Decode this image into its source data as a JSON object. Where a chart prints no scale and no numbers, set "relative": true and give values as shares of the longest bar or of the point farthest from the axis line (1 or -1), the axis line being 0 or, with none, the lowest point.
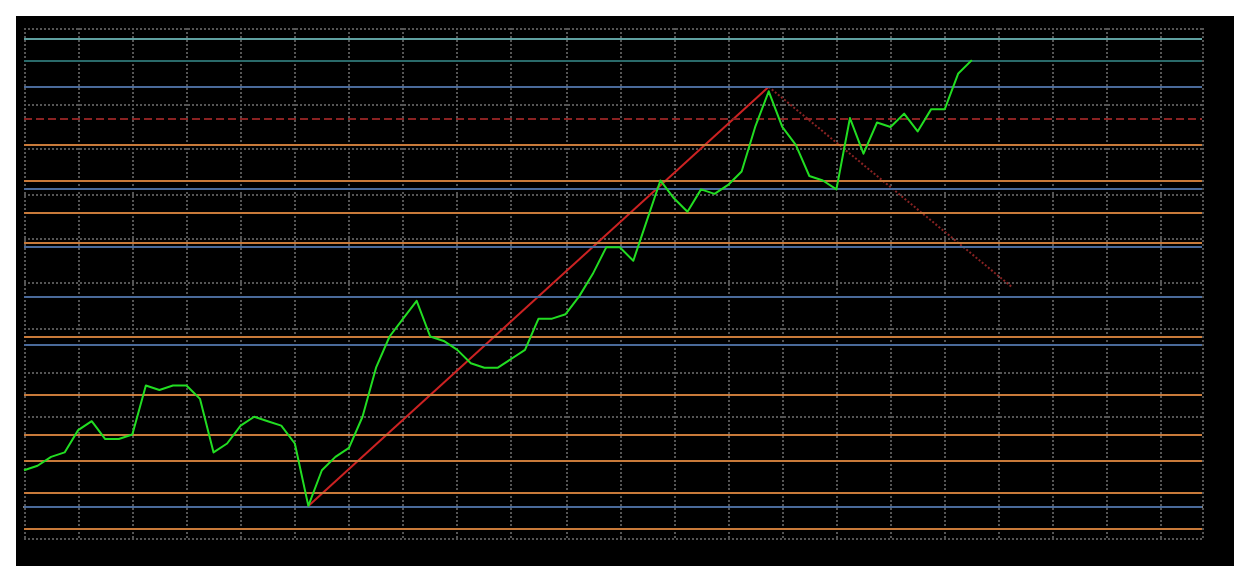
{
  "chart_data": {
    "type": "line",
    "relative": true,
    "grid": true,
    "marker": "none",
    "categories": [
      null,
      null,
      null,
      null,
      null,
      null,
      null,
      null,
      null,
      null,
      null,
      null,
      null,
      null,
      null,
      null,
      null,
      null,
      null,
      null,
      null,
      null,
      null,
      null,
      null,
      null,
      null,
      null,
      null,
      null,
      null,
      null,
      null,
      null,
      null,
      null,
      null,
      null,
      null,
      null,
      null,
      null,
      null,
      null,
      null,
      null,
      null,
      null,
      null,
      null,
      null,
      null,
      null,
      null,
      null,
      null,
      null,
      null,
      null,
      null,
      null,
      null,
      null,
      null,
      null,
      null,
      null,
      null,
      null,
      null,
      null,
      null,
      null,
      null,
      null,
      null,
      null,
      null,
      null,
      null,
      null,
      null,
      null,
      null,
      null,
      null,
      null,
      null
    ],
    "series": [
      {
        "color": "#22dd22",
        "values": [
          0.08,
          0.09,
          0.11,
          0.12,
          0.17,
          0.19,
          0.15,
          0.15,
          0.16,
          0.27,
          0.26,
          0.27,
          0.27,
          0.24,
          0.12,
          0.14,
          0.18,
          0.2,
          0.19,
          0.18,
          0.14,
          0,
          0.08,
          0.11,
          0.13,
          0.2,
          0.31,
          0.38,
          0.42,
          0.46,
          0.38,
          0.37,
          0.35,
          0.32,
          0.31,
          0.31,
          0.33,
          0.35,
          0.42,
          0.42,
          0.43,
          0.47,
          0.52,
          0.58,
          0.58,
          0.55,
          0.64,
          0.73,
          0.69,
          0.66,
          0.71,
          0.7,
          0.72,
          0.75,
          0.85,
          0.93,
          0.85,
          0.81,
          0.74,
          0.73,
          0.71,
          0.87,
          0.79,
          0.86,
          0.85,
          0.88,
          0.84,
          0.89,
          0.89,
          0.97,
          1,
          null,
          null,
          null,
          null,
          null,
          null,
          null,
          null,
          null,
          null,
          null,
          null,
          null,
          null,
          null,
          null,
          null
        ]
      },
      {
        "color": "#cc2222",
        "values": [
          null,
          null,
          null,
          null,
          null,
          null,
          null,
          null,
          null,
          null,
          null,
          null,
          null,
          null,
          null,
          null,
          null,
          null,
          null,
          null,
          null,
          0,
          null,
          null,
          null,
          null,
          null,
          null,
          null,
          null,
          null,
          null,
          null,
          null,
          null,
          null,
          null,
          null,
          null,
          null,
          null,
          null,
          null,
          null,
          null,
          null,
          null,
          null,
          null,
          null,
          null,
          null,
          null,
          null,
          null,
          0.94,
          null,
          null,
          null,
          null,
          null,
          null,
          null,
          null,
          null,
          null,
          null,
          null,
          null,
          null,
          null,
          null,
          null,
          null,
          null,
          null,
          null,
          null,
          null,
          null,
          null,
          null,
          null,
          null,
          null,
          null,
          null,
          null
        ]
      },
      {
        "color": "#882222",
        "line_style": "dotted",
        "values": [
          null,
          null,
          null,
          null,
          null,
          null,
          null,
          null,
          null,
          null,
          null,
          null,
          null,
          null,
          null,
          null,
          null,
          null,
          null,
          null,
          null,
          null,
          null,
          null,
          null,
          null,
          null,
          null,
          null,
          null,
          null,
          null,
          null,
          null,
          null,
          null,
          null,
          null,
          null,
          null,
          null,
          null,
          null,
          null,
          null,
          null,
          null,
          null,
          null,
          null,
          null,
          null,
          null,
          null,
          null,
          0.94,
          null,
          null,
          null,
          null,
          null,
          null,
          null,
          null,
          null,
          null,
          null,
          null,
          null,
          null,
          null,
          null,
          null,
          0.49,
          null,
          null,
          null,
          null,
          null,
          null,
          null,
          null,
          null,
          null,
          null,
          null,
          null,
          null
        ]
      }
    ],
    "ref_lines": [
      {
        "axis": "y",
        "value": 1.05,
        "color": "#5fa0a0"
      },
      {
        "axis": "y",
        "value": 1.0,
        "color": "#2a6a6a"
      },
      {
        "axis": "y",
        "value": 0.94,
        "color": "#4a6a9a"
      },
      {
        "axis": "y",
        "value": 0.87,
        "color": "#8a2222",
        "line_style": "dashed"
      },
      {
        "axis": "y",
        "value": 0.81,
        "color": "#c87a3a"
      },
      {
        "axis": "y",
        "value": 0.73,
        "color": "#c87a3a"
      },
      {
        "axis": "y",
        "value": 0.71,
        "color": "#4a6a9a"
      },
      {
        "axis": "y",
        "value": 0.66,
        "color": "#c87a3a"
      },
      {
        "axis": "y",
        "value": 0.59,
        "color": "#c87a3a"
      },
      {
        "axis": "y",
        "value": 0.58,
        "color": "#4a6a9a"
      },
      {
        "axis": "y",
        "value": 0.47,
        "color": "#4a6a9a"
      },
      {
        "axis": "y",
        "value": 0.38,
        "color": "#c87a3a"
      },
      {
        "axis": "y",
        "value": 0.36,
        "color": "#4a6a9a"
      },
      {
        "axis": "y",
        "value": 0.25,
        "color": "#c87a3a"
      },
      {
        "axis": "y",
        "value": 0.16,
        "color": "#c87a3a"
      },
      {
        "axis": "y",
        "value": 0.1,
        "color": "#c87a3a"
      },
      {
        "axis": "y",
        "value": 0.03,
        "color": "#c87a3a"
      },
      {
        "axis": "y",
        "value": 0,
        "color": "#4a6a9a"
      },
      {
        "axis": "y",
        "value": -0.05,
        "color": "#c87a3a"
      }
    ]
  }
}
